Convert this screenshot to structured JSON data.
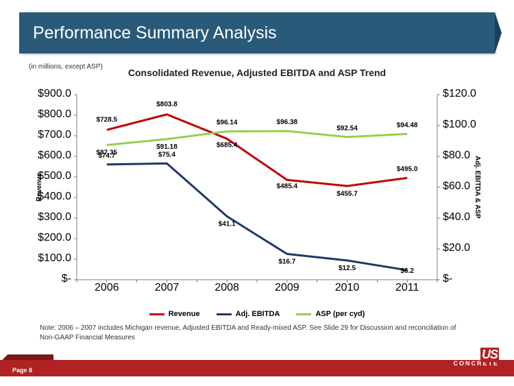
{
  "slide": {
    "title": "Performance Summary Analysis",
    "unit_note": "(in millions, except ASP)",
    "chart_title": "Consolidated Revenue, Adjusted EBITDA and ASP Trend",
    "foot_note": "Note:  2006 – 2007 includes Michigan revenue, Adjusted EBITDA and Ready-mixed ASP.  See Slide 29 for Discussion and reconciliation of Non-GAAP Financial Measures",
    "page_label": "Page 8",
    "logo_top": "US",
    "logo_bottom": "CONCRETE"
  },
  "chart": {
    "type": "line-dual-axis",
    "categories": [
      "2006",
      "2007",
      "2008",
      "2009",
      "2010",
      "2011"
    ],
    "series": [
      {
        "key": "revenue",
        "name": "Revenue",
        "axis": "left",
        "color": "#c00000",
        "width": 3,
        "values": [
          728.5,
          803.8,
          685.4,
          485.4,
          455.7,
          495.0
        ],
        "labels": [
          "$728.5",
          "$803.8",
          "$685.4",
          "$485.4",
          "$455.7",
          "$495.0"
        ],
        "label_dy": [
          -12,
          -12,
          12,
          12,
          14,
          -10
        ]
      },
      {
        "key": "adj_ebitda",
        "name": "Adj. EBITDA",
        "axis": "right",
        "color": "#1f3864",
        "width": 3,
        "values": [
          74.7,
          75.4,
          41.1,
          16.7,
          12.5,
          6.2
        ],
        "labels": [
          "$74.7",
          "$75.4",
          "$41.1",
          "$16.7",
          "$12.5",
          "$6.2"
        ],
        "label_dy": [
          -10,
          -10,
          14,
          14,
          14,
          4
        ]
      },
      {
        "key": "asp",
        "name": "ASP (per cyd)",
        "axis": "right",
        "color": "#92d050",
        "width": 3,
        "values": [
          87.35,
          91.18,
          96.14,
          96.38,
          92.54,
          94.48
        ],
        "labels": [
          "$87.35",
          "$91.18",
          "$96.14",
          "$96.38",
          "$92.54",
          "$94.48"
        ],
        "label_dy": [
          14,
          14,
          -10,
          -10,
          -10,
          -10
        ]
      }
    ],
    "left_axis": {
      "title": "Revenue",
      "min": 0,
      "max": 900,
      "step": 100,
      "format": "$#.0"
    },
    "right_axis": {
      "title": "Adj. EBITDA & ASP",
      "min": 0,
      "max": 120,
      "step": 20,
      "format": "$#.0"
    },
    "plot": {
      "bg": "#ffffff",
      "border": "#000000"
    },
    "fonts": {
      "tick": 10,
      "label": 10,
      "axis_title": 10
    }
  },
  "legend": {
    "items": [
      {
        "color": "#c00000",
        "label": "Revenue"
      },
      {
        "color": "#1f3864",
        "label": "Adj. EBITDA"
      },
      {
        "color": "#92d050",
        "label": "ASP (per cyd)"
      }
    ]
  },
  "colors": {
    "title_bar": "#2a5a7a",
    "red_band": "#b02223"
  }
}
